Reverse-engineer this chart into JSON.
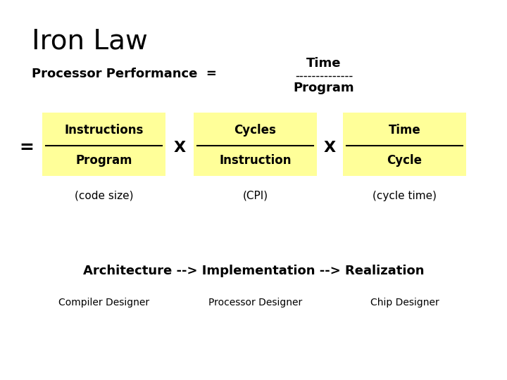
{
  "title": "Iron Law",
  "background_color": "#ffffff",
  "yellow_bg": "#ffff99",
  "title_fontsize": 28,
  "perf_label": "Processor Performance  =",
  "perf_time": "Time",
  "perf_dashes": "--------------",
  "perf_program": "Program",
  "eq_sign": "=",
  "frac1_num": "Instructions",
  "frac1_den": "Program",
  "frac1_sub": "(code size)",
  "frac2_num": "Cycles",
  "frac2_den": "Instruction",
  "frac2_sub": "(CPI)",
  "frac3_num": "Time",
  "frac3_den": "Cycle",
  "frac3_sub": "(cycle time)",
  "x_sign": "X",
  "arch_line": "Architecture --> Implementation --> Realization",
  "sub1": "Compiler Designer",
  "sub2": "Processor Designer",
  "sub3": "Chip Designer"
}
